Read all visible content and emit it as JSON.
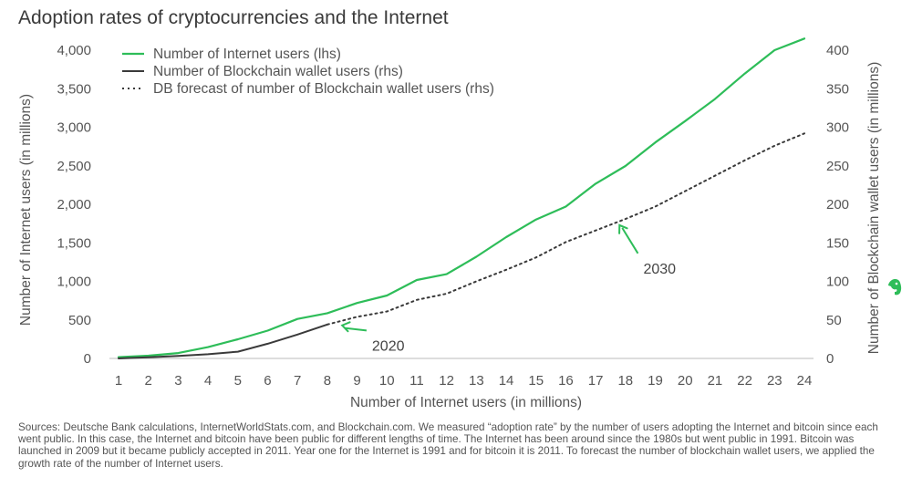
{
  "title": "Adoption rates of cryptocurrencies and the Internet",
  "source_note": "Sources: Deutsche Bank calculations, InternetWorldStats.com, and Blockchain.com. We measured “adoption rate” by the number of users adopting the Internet and bitcoin since each went public. In this case, the Internet and bitcoin have been public for different lengths of time. The Internet has been around since the 1980s but went public in 1991. Bitcoin was launched in 2009 but it became publicly accepted in 2011. Year one for the Internet is 1991 and for bitcoin it is 2011. To forecast the number of blockchain wallet users, we applied the growth rate of the number of Internet users.",
  "logo_icon": "evernote-elephant-icon",
  "colors": {
    "internet": "#2ebd59",
    "blockchain": "#3a3a3a",
    "forecast": "#3a3a3a",
    "arrow": "#2ebd59"
  },
  "chart_data": {
    "type": "line",
    "title": "Adoption rates of cryptocurrencies and the Internet",
    "xlabel": "Number of Internet users (in millions)",
    "ylabel_left": "Number of Internet users (in millions)",
    "ylabel_right": "Number of Blockchain wallet users (in millions)",
    "x_ticks": [
      1,
      2,
      3,
      4,
      5,
      6,
      7,
      8,
      9,
      10,
      11,
      12,
      13,
      14,
      15,
      16,
      17,
      18,
      19,
      20,
      21,
      22,
      23,
      24
    ],
    "y_left_ticks": [
      0,
      500,
      1000,
      1500,
      2000,
      2500,
      3000,
      3500,
      4000
    ],
    "y_left_tick_labels": [
      "0",
      "500",
      "1,000",
      "1,500",
      "2,000",
      "2,500",
      "3,000",
      "3,500",
      "4,000"
    ],
    "y_right_ticks": [
      0,
      50,
      100,
      150,
      200,
      250,
      300,
      350,
      400
    ],
    "y_right_tick_labels": [
      "0",
      "50",
      "100",
      "150",
      "200",
      "250",
      "300",
      "350",
      "400"
    ],
    "ylim_left": [
      0,
      4000
    ],
    "ylim_right": [
      0,
      400
    ],
    "legend_position": "top-left",
    "series": [
      {
        "name": "Number of Internet users (lhs)",
        "axis": "left",
        "style": "solid",
        "x": [
          1,
          2,
          3,
          4,
          5,
          6,
          7,
          8,
          9,
          10,
          11,
          12,
          13,
          14,
          15,
          16,
          17,
          18,
          19,
          20,
          21,
          22,
          23,
          24
        ],
        "values": [
          16,
          36,
          70,
          147,
          248,
          361,
          513,
          587,
          719,
          817,
          1018,
          1093,
          1319,
          1574,
          1802,
          1971,
          2267,
          2497,
          2802,
          3079,
          3366,
          3696,
          4000,
          4150
        ]
      },
      {
        "name": "Number of Blockchain wallet users (rhs)",
        "axis": "right",
        "style": "solid",
        "x": [
          1,
          2,
          3,
          4,
          5,
          6,
          7,
          8
        ],
        "values": [
          0,
          1.5,
          3.3,
          5.5,
          8.8,
          19,
          31,
          44
        ]
      },
      {
        "name": "DB forecast of number of Blockchain wallet users (rhs)",
        "axis": "right",
        "style": "dotted",
        "x": [
          8,
          9,
          10,
          11,
          12,
          13,
          14,
          15,
          16,
          17,
          18,
          19,
          20,
          21,
          22,
          23,
          24
        ],
        "values": [
          44,
          54,
          61,
          76,
          84,
          100,
          115,
          131,
          151,
          166,
          181,
          197,
          217,
          237,
          257,
          276,
          292
        ]
      }
    ],
    "annotations": [
      {
        "label": "2020",
        "x": 8.5,
        "y_right": 50,
        "text_x": 9.5,
        "text_y_right": 15
      },
      {
        "label": "2030",
        "x": 17.8,
        "y_right": 180,
        "text_x": 18.6,
        "text_y_right": 115
      }
    ]
  }
}
